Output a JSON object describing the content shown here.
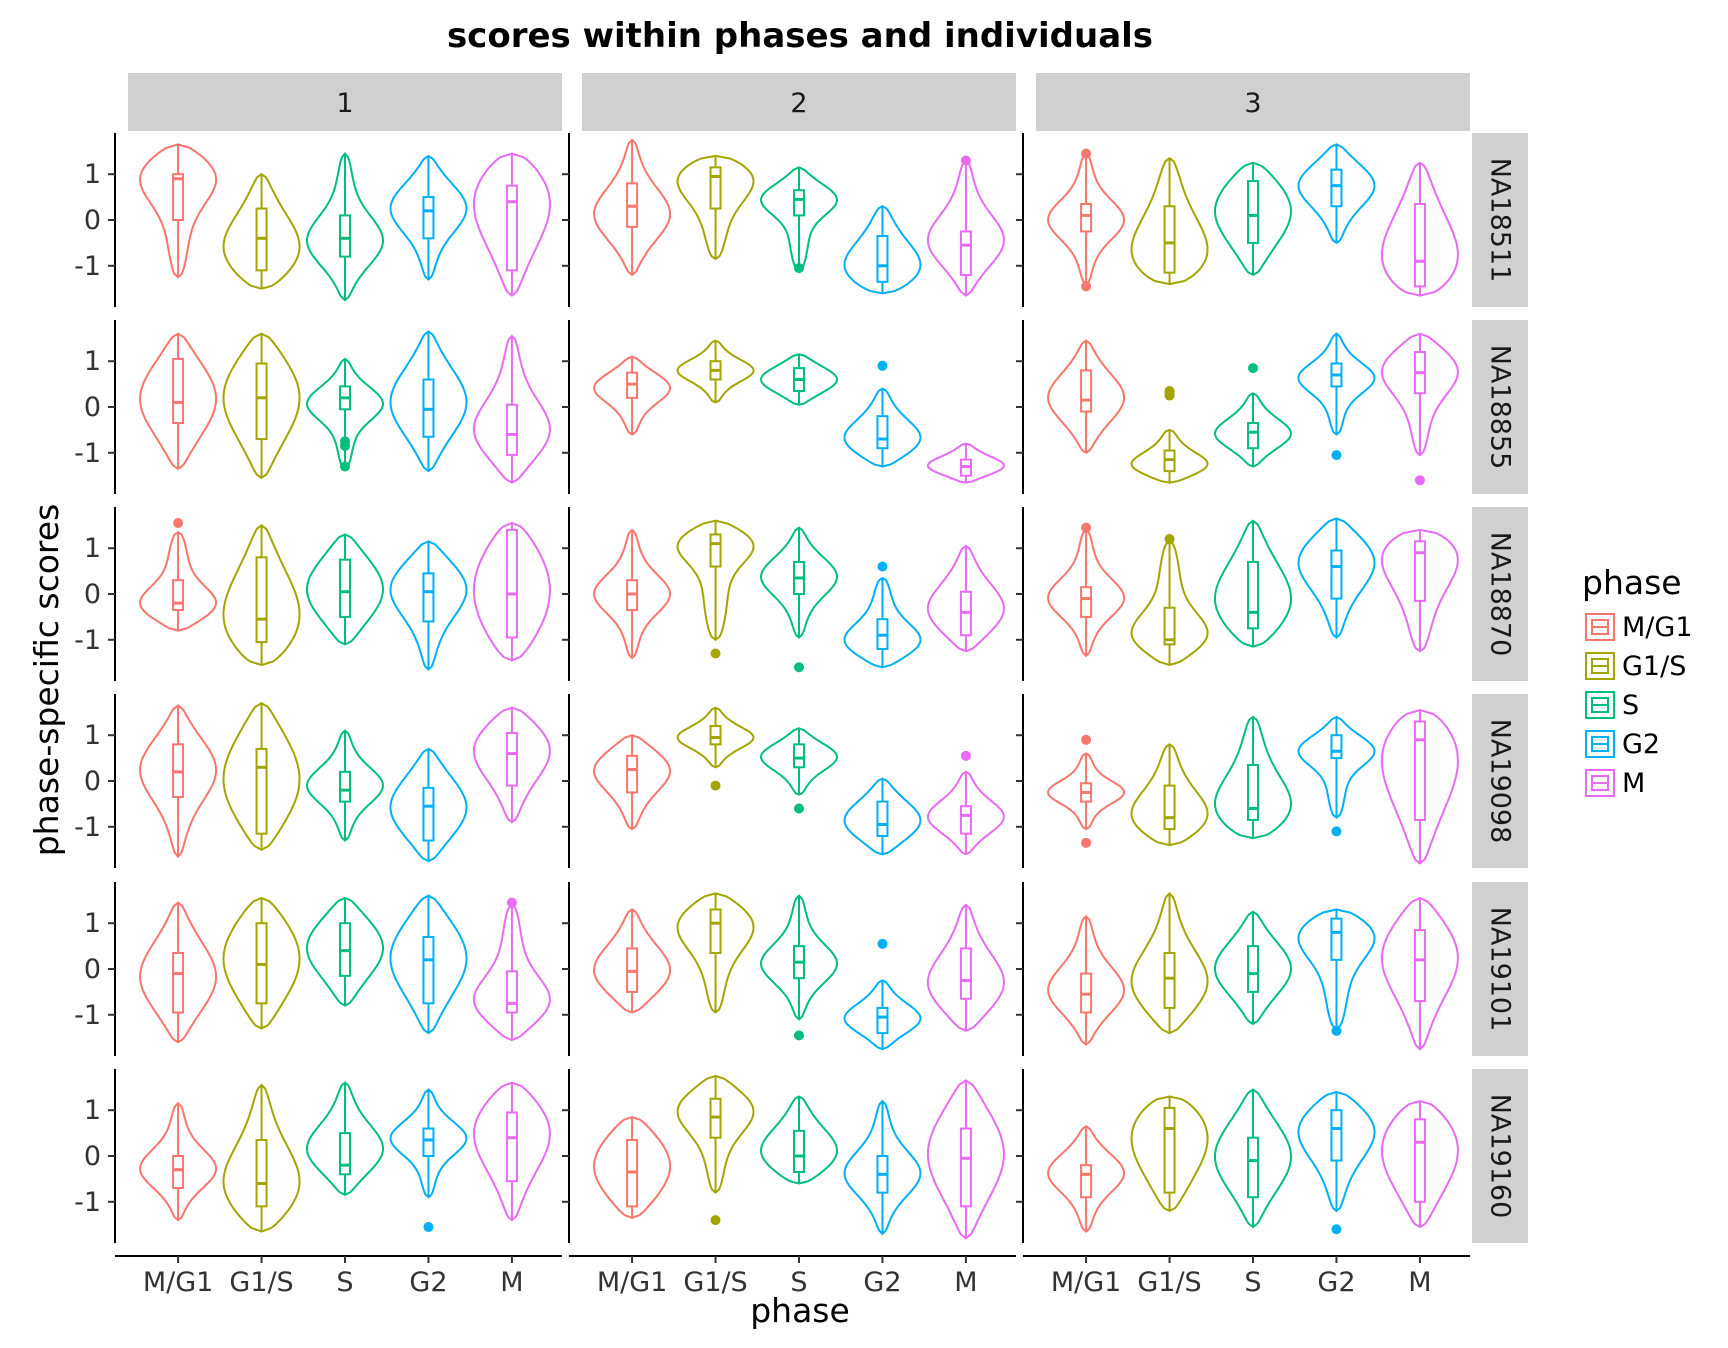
{
  "chart_data": {
    "type": "violin",
    "title": "scores within phases and individuals",
    "xlabel": "phase",
    "ylabel": "phase-specific scores",
    "legend": {
      "title": "phase",
      "placement": "right"
    },
    "ylim": [
      -1.9,
      1.9
    ],
    "yticks": [
      1,
      0,
      -1
    ],
    "ytick_labels": [
      "1",
      "0",
      "-1"
    ],
    "categories": [
      "M/G1",
      "G1/S",
      "S",
      "G2",
      "M"
    ],
    "colors": {
      "M/G1": "#F8766D",
      "G1/S": "#A3A500",
      "S": "#00BF7D",
      "G2": "#00B0F6",
      "M": "#E76BF3"
    },
    "columns": [
      "1",
      "2",
      "3"
    ],
    "rows": [
      "NA18511",
      "NA18855",
      "NA18870",
      "NA19098",
      "NA19101",
      "NA19160"
    ],
    "panels": {
      "NA18511": {
        "1": [
          {
            "min": -1.25,
            "max": 1.65,
            "q1": 0,
            "med": 0.9,
            "q3": 1.0,
            "mode": 1.1
          },
          {
            "min": -1.5,
            "max": 1.0,
            "q1": -1.1,
            "med": -0.4,
            "q3": 0.25,
            "mode": -0.8
          },
          {
            "min": -1.75,
            "max": 1.45,
            "q1": -0.8,
            "med": -0.4,
            "q3": 0.1,
            "mode": -0.5
          },
          {
            "min": -1.3,
            "max": 1.4,
            "q1": -0.4,
            "med": 0.2,
            "q3": 0.5,
            "mode": 0.3
          },
          {
            "min": -1.65,
            "max": 1.45,
            "q1": -1.1,
            "med": 0.4,
            "q3": 0.75,
            "mode": 0.7
          }
        ],
        "2": [
          {
            "min": -1.2,
            "max": 1.75,
            "q1": -0.15,
            "med": 0.3,
            "q3": 0.8,
            "mode": 0.1
          },
          {
            "min": -0.85,
            "max": 1.4,
            "q1": 0.25,
            "med": 0.95,
            "q3": 1.15,
            "mode": 1.1
          },
          {
            "min": -1.1,
            "max": 1.15,
            "q1": 0.1,
            "med": 0.45,
            "q3": 0.65,
            "mode": 0.5,
            "outliers": [
              -1.05
            ]
          },
          {
            "min": -1.6,
            "max": 0.3,
            "q1": -1.35,
            "med": -1.0,
            "q3": -0.35,
            "mode": -1.2
          },
          {
            "min": -1.65,
            "max": 1.3,
            "q1": -1.2,
            "med": -0.55,
            "q3": -0.25,
            "mode": -0.5,
            "outliers": [
              1.3
            ]
          }
        ],
        "3": [
          {
            "min": -1.4,
            "max": 1.45,
            "q1": -0.25,
            "med": 0.1,
            "q3": 0.35,
            "mode": 0.0,
            "outliers": [
              1.45,
              -1.45
            ]
          },
          {
            "min": -1.4,
            "max": 1.35,
            "q1": -1.15,
            "med": -0.5,
            "q3": 0.3,
            "mode": -1.1
          },
          {
            "min": -1.2,
            "max": 1.25,
            "q1": -0.5,
            "med": 0.1,
            "q3": 0.85,
            "mode": 0.3
          },
          {
            "min": -0.5,
            "max": 1.65,
            "q1": 0.3,
            "med": 0.75,
            "q3": 1.1,
            "mode": 0.8
          },
          {
            "min": -1.65,
            "max": 1.25,
            "q1": -1.45,
            "med": -0.9,
            "q3": 0.35,
            "mode": -1.3
          }
        ]
      },
      "NA18855": {
        "1": [
          {
            "min": -1.35,
            "max": 1.6,
            "q1": -0.35,
            "med": 0.1,
            "q3": 1.05,
            "mode": 0.2
          },
          {
            "min": -1.55,
            "max": 1.6,
            "q1": -0.7,
            "med": 0.2,
            "q3": 0.95,
            "mode": 0.3
          },
          {
            "min": -1.35,
            "max": 1.05,
            "q1": -0.05,
            "med": 0.2,
            "q3": 0.45,
            "mode": 0.1,
            "outliers": [
              -0.75,
              -0.85,
              -1.3
            ]
          },
          {
            "min": -1.4,
            "max": 1.65,
            "q1": -0.65,
            "med": -0.05,
            "q3": 0.6,
            "mode": 0.1
          },
          {
            "min": -1.65,
            "max": 1.55,
            "q1": -1.05,
            "med": -0.6,
            "q3": 0.05,
            "mode": -0.6
          }
        ],
        "2": [
          {
            "min": -0.6,
            "max": 1.1,
            "q1": 0.2,
            "med": 0.5,
            "q3": 0.75,
            "mode": 0.45
          },
          {
            "min": 0.1,
            "max": 1.45,
            "q1": 0.6,
            "med": 0.8,
            "q3": 1.0,
            "mode": 0.8
          },
          {
            "min": 0.05,
            "max": 1.15,
            "q1": 0.35,
            "med": 0.6,
            "q3": 0.85,
            "mode": 0.6
          },
          {
            "min": -1.3,
            "max": 0.4,
            "q1": -0.9,
            "med": -0.7,
            "q3": -0.2,
            "mode": -0.75,
            "outliers": [
              0.9
            ]
          },
          {
            "min": -1.65,
            "max": -0.8,
            "q1": -1.5,
            "med": -1.3,
            "q3": -1.15,
            "mode": -1.3
          }
        ],
        "3": [
          {
            "min": -1.0,
            "max": 1.45,
            "q1": -0.1,
            "med": 0.15,
            "q3": 0.8,
            "mode": 0.2
          },
          {
            "min": -1.65,
            "max": -0.5,
            "q1": -1.4,
            "med": -1.15,
            "q3": -0.95,
            "mode": -1.3,
            "outliers": [
              0.35,
              0.25,
              0.3
            ]
          },
          {
            "min": -1.3,
            "max": 0.3,
            "q1": -0.9,
            "med": -0.55,
            "q3": -0.35,
            "mode": -0.6,
            "outliers": [
              0.85
            ]
          },
          {
            "min": -0.6,
            "max": 1.6,
            "q1": 0.45,
            "med": 0.7,
            "q3": 0.95,
            "mode": 0.65,
            "outliers": [
              -1.05
            ]
          },
          {
            "min": -1.05,
            "max": 1.6,
            "q1": 0.3,
            "med": 0.75,
            "q3": 1.2,
            "mode": 0.9,
            "outliers": [
              -1.6
            ]
          }
        ]
      },
      "NA18870": {
        "1": [
          {
            "min": -0.8,
            "max": 1.35,
            "q1": -0.35,
            "med": -0.2,
            "q3": 0.3,
            "mode": -0.3,
            "outliers": [
              1.55
            ]
          },
          {
            "min": -1.55,
            "max": 1.5,
            "q1": -1.05,
            "med": -0.55,
            "q3": 0.8,
            "mode": -0.8
          },
          {
            "min": -1.1,
            "max": 1.3,
            "q1": -0.5,
            "med": 0.05,
            "q3": 0.75,
            "mode": 0.1
          },
          {
            "min": -1.65,
            "max": 1.15,
            "q1": -0.6,
            "med": 0.05,
            "q3": 0.45,
            "mode": 0.2
          },
          {
            "min": -1.45,
            "max": 1.55,
            "q1": -0.95,
            "med": 0.0,
            "q3": 1.4,
            "mode": 0.1
          }
        ],
        "2": [
          {
            "min": -1.4,
            "max": 1.4,
            "q1": -0.35,
            "med": 0.0,
            "q3": 0.3,
            "mode": 0.0
          },
          {
            "min": -1.0,
            "max": 1.6,
            "q1": 0.6,
            "med": 1.1,
            "q3": 1.3,
            "mode": 1.2,
            "outliers": [
              -1.3
            ]
          },
          {
            "min": -0.95,
            "max": 1.45,
            "q1": 0.0,
            "med": 0.35,
            "q3": 0.7,
            "mode": 0.4,
            "outliers": [
              -1.6
            ]
          },
          {
            "min": -1.6,
            "max": 0.35,
            "q1": -1.2,
            "med": -0.9,
            "q3": -0.55,
            "mode": -1.1,
            "outliers": [
              0.6
            ]
          },
          {
            "min": -1.25,
            "max": 1.05,
            "q1": -0.9,
            "med": -0.4,
            "q3": 0.05,
            "mode": -0.4
          }
        ],
        "3": [
          {
            "min": -1.35,
            "max": 1.4,
            "q1": -0.5,
            "med": -0.1,
            "q3": 0.15,
            "mode": -0.1,
            "outliers": [
              1.45
            ]
          },
          {
            "min": -1.55,
            "max": 1.15,
            "q1": -1.1,
            "med": -1.0,
            "q3": -0.3,
            "mode": -1.0,
            "outliers": [
              1.2
            ]
          },
          {
            "min": -1.15,
            "max": 1.6,
            "q1": -0.75,
            "med": -0.4,
            "q3": 0.7,
            "mode": -0.3
          },
          {
            "min": -0.95,
            "max": 1.65,
            "q1": -0.1,
            "med": 0.6,
            "q3": 0.95,
            "mode": 0.8
          },
          {
            "min": -1.25,
            "max": 1.4,
            "q1": -0.15,
            "med": 0.9,
            "q3": 1.15,
            "mode": 1.2
          }
        ]
      },
      "NA19098": {
        "1": [
          {
            "min": -1.65,
            "max": 1.65,
            "q1": -0.35,
            "med": 0.2,
            "q3": 0.8,
            "mode": 0.3
          },
          {
            "min": -1.5,
            "max": 1.7,
            "q1": -1.15,
            "med": 0.3,
            "q3": 0.7,
            "mode": 0.0
          },
          {
            "min": -1.3,
            "max": 1.1,
            "q1": -0.45,
            "med": -0.2,
            "q3": 0.2,
            "mode": -0.1
          },
          {
            "min": -1.75,
            "max": 0.7,
            "q1": -1.3,
            "med": -0.55,
            "q3": -0.15,
            "mode": -0.6
          },
          {
            "min": -0.9,
            "max": 1.6,
            "q1": -0.1,
            "med": 0.6,
            "q3": 1.05,
            "mode": 0.8
          }
        ],
        "2": [
          {
            "min": -1.05,
            "max": 1.0,
            "q1": -0.25,
            "med": 0.25,
            "q3": 0.55,
            "mode": 0.3
          },
          {
            "min": 0.3,
            "max": 1.6,
            "q1": 0.8,
            "med": 0.95,
            "q3": 1.2,
            "mode": 0.95,
            "outliers": [
              -0.1
            ]
          },
          {
            "min": -0.3,
            "max": 1.15,
            "q1": 0.3,
            "med": 0.5,
            "q3": 0.8,
            "mode": 0.55,
            "outliers": [
              -0.6
            ]
          },
          {
            "min": -1.6,
            "max": 0.05,
            "q1": -1.2,
            "med": -0.95,
            "q3": -0.45,
            "mode": -0.9
          },
          {
            "min": -1.6,
            "max": 0.2,
            "q1": -1.15,
            "med": -0.75,
            "q3": -0.55,
            "mode": -0.8,
            "outliers": [
              0.55
            ]
          }
        ],
        "3": [
          {
            "min": -1.05,
            "max": 0.6,
            "q1": -0.45,
            "med": -0.25,
            "q3": -0.05,
            "mode": -0.25,
            "outliers": [
              0.9,
              -1.35
            ]
          },
          {
            "min": -1.4,
            "max": 0.8,
            "q1": -1.05,
            "med": -0.8,
            "q3": -0.1,
            "mode": -0.9
          },
          {
            "min": -1.25,
            "max": 1.4,
            "q1": -0.85,
            "med": -0.6,
            "q3": 0.35,
            "mode": -0.8
          },
          {
            "min": -0.8,
            "max": 1.4,
            "q1": 0.5,
            "med": 0.65,
            "q3": 1.0,
            "mode": 0.7,
            "outliers": [
              -1.1
            ]
          },
          {
            "min": -1.8,
            "max": 1.55,
            "q1": -0.85,
            "med": 0.9,
            "q3": 1.3,
            "mode": 1.0
          }
        ]
      },
      "NA19101": {
        "1": [
          {
            "min": -1.6,
            "max": 1.45,
            "q1": -0.95,
            "med": -0.1,
            "q3": 0.35,
            "mode": -0.2
          },
          {
            "min": -1.3,
            "max": 1.55,
            "q1": -0.75,
            "med": 0.1,
            "q3": 1.0,
            "mode": 0.3
          },
          {
            "min": -0.8,
            "max": 1.55,
            "q1": -0.15,
            "med": 0.4,
            "q3": 1.0,
            "mode": 0.5
          },
          {
            "min": -1.4,
            "max": 1.6,
            "q1": -0.75,
            "med": 0.2,
            "q3": 0.7,
            "mode": 0.3
          },
          {
            "min": -1.55,
            "max": 1.4,
            "q1": -0.95,
            "med": -0.75,
            "q3": -0.05,
            "mode": -0.8,
            "outliers": [
              1.45
            ]
          }
        ],
        "2": [
          {
            "min": -0.95,
            "max": 1.3,
            "q1": -0.5,
            "med": -0.05,
            "q3": 0.45,
            "mode": -0.1
          },
          {
            "min": -0.95,
            "max": 1.65,
            "q1": 0.35,
            "med": 1.0,
            "q3": 1.3,
            "mode": 1.1
          },
          {
            "min": -1.1,
            "max": 1.6,
            "q1": -0.2,
            "med": 0.15,
            "q3": 0.5,
            "mode": 0.1,
            "outliers": [
              -1.45
            ]
          },
          {
            "min": -1.75,
            "max": -0.25,
            "q1": -1.4,
            "med": -1.05,
            "q3": -0.85,
            "mode": -1.1,
            "outliers": [
              0.55
            ]
          },
          {
            "min": -1.35,
            "max": 1.4,
            "q1": -0.65,
            "med": -0.25,
            "q3": 0.45,
            "mode": -0.4
          }
        ],
        "3": [
          {
            "min": -1.65,
            "max": 1.15,
            "q1": -0.95,
            "med": -0.55,
            "q3": -0.1,
            "mode": -0.5
          },
          {
            "min": -1.4,
            "max": 1.65,
            "q1": -0.85,
            "med": -0.2,
            "q3": 0.35,
            "mode": -0.4
          },
          {
            "min": -1.2,
            "max": 1.25,
            "q1": -0.5,
            "med": -0.1,
            "q3": 0.5,
            "mode": 0.0
          },
          {
            "min": -1.3,
            "max": 1.3,
            "q1": 0.2,
            "med": 0.8,
            "q3": 1.1,
            "mode": 0.9,
            "outliers": [
              -1.35
            ]
          },
          {
            "min": -1.75,
            "max": 1.55,
            "q1": -0.7,
            "med": 0.2,
            "q3": 0.85,
            "mode": 0.4
          }
        ]
      },
      "NA19160": {
        "1": [
          {
            "min": -1.4,
            "max": 1.15,
            "q1": -0.7,
            "med": -0.3,
            "q3": 0.0,
            "mode": -0.3
          },
          {
            "min": -1.65,
            "max": 1.55,
            "q1": -1.1,
            "med": -0.6,
            "q3": 0.35,
            "mode": -0.8
          },
          {
            "min": -0.85,
            "max": 1.6,
            "q1": -0.4,
            "med": -0.2,
            "q3": 0.5,
            "mode": 0.1
          },
          {
            "min": -0.9,
            "max": 1.45,
            "q1": 0.0,
            "med": 0.35,
            "q3": 0.6,
            "mode": 0.4,
            "outliers": [
              -1.55
            ]
          },
          {
            "min": -1.4,
            "max": 1.6,
            "q1": -0.55,
            "med": 0.4,
            "q3": 0.95,
            "mode": 0.7
          }
        ],
        "2": [
          {
            "min": -1.35,
            "max": 0.85,
            "q1": -1.1,
            "med": -0.35,
            "q3": 0.35,
            "mode": -0.2
          },
          {
            "min": -0.8,
            "max": 1.75,
            "q1": 0.4,
            "med": 0.85,
            "q3": 1.25,
            "mode": 1.1,
            "outliers": [
              -1.4
            ]
          },
          {
            "min": -0.6,
            "max": 1.3,
            "q1": -0.35,
            "med": 0.0,
            "q3": 0.55,
            "mode": 0.0
          },
          {
            "min": -1.7,
            "max": 1.2,
            "q1": -0.8,
            "med": -0.4,
            "q3": 0.0,
            "mode": -0.4
          },
          {
            "min": -1.8,
            "max": 1.65,
            "q1": -1.1,
            "med": -0.05,
            "q3": 0.6,
            "mode": 0.1
          }
        ],
        "3": [
          {
            "min": -1.65,
            "max": 0.65,
            "q1": -0.9,
            "med": -0.4,
            "q3": -0.2,
            "mode": -0.35
          },
          {
            "min": -1.2,
            "max": 1.3,
            "q1": -0.8,
            "med": 0.6,
            "q3": 1.05,
            "mode": 0.8
          },
          {
            "min": -1.55,
            "max": 1.45,
            "q1": -0.9,
            "med": -0.1,
            "q3": 0.4,
            "mode": 0.0
          },
          {
            "min": -1.2,
            "max": 1.4,
            "q1": -0.1,
            "med": 0.6,
            "q3": 1.0,
            "mode": 0.7,
            "outliers": [
              -1.6
            ]
          },
          {
            "min": -1.55,
            "max": 1.2,
            "q1": -1.0,
            "med": 0.3,
            "q3": 0.8,
            "mode": 0.4
          }
        ]
      }
    }
  }
}
